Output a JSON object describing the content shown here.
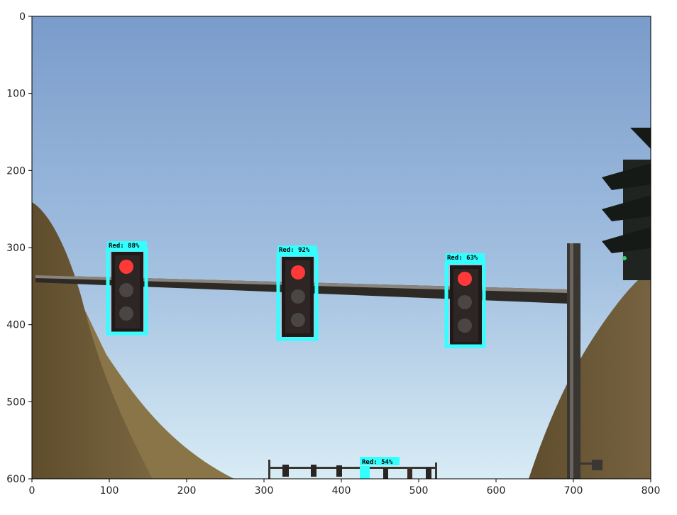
{
  "axes": {
    "x_ticks": [
      "0",
      "100",
      "200",
      "300",
      "400",
      "500",
      "600",
      "700",
      "800"
    ],
    "y_ticks": [
      "0",
      "100",
      "200",
      "300",
      "400",
      "500",
      "600"
    ]
  },
  "detections": [
    {
      "label": "Red: 88%"
    },
    {
      "label": "Red: 92%"
    },
    {
      "label": "Red: 63%"
    },
    {
      "label": "Red: 54%"
    }
  ],
  "colors": {
    "box": "#33ffff",
    "red_light": "#ff3838",
    "sky_top": "#7b9ec8",
    "sky_bottom": "#cfe6f3",
    "terrain": "#6e5a36"
  }
}
